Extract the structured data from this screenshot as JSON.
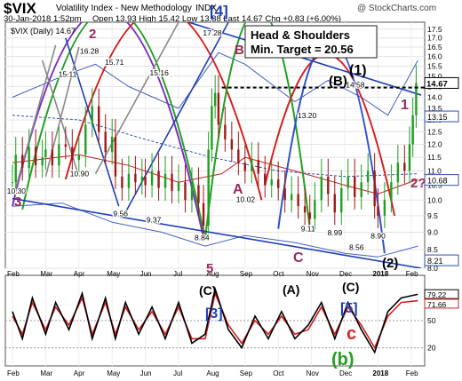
{
  "header": {
    "symbol": "$VIX",
    "name": "Volatility Index - New Methodology",
    "exchange": "INDX",
    "date_time": "30-Jan-2018 1:52pm",
    "quote": "Open 13.93 High 15.42 Low 13.88 Last 14.67 Chg +0.83 (+6.00%)",
    "watermark": "@ StockCharts.com",
    "legend": "$VIX (Daily) 14.67"
  },
  "annotations": {
    "hs_title": "Head & Shoulders",
    "hs_target": "Min. Target = 20.56",
    "top_wave": "[4]",
    "wave_labels": {
      "p_1": "(1)",
      "p_B": "(B)",
      "p_1r": "1",
      "p_2q": "2?",
      "p_2": "(2)",
      "p_3": "3",
      "p_2L": "2",
      "p_B2": "B",
      "p_A": "A",
      "p_C": "C",
      "p_5": "5",
      "i_C1": "(C)",
      "i_A": "(A)",
      "i_C2": "(C)",
      "i_3": "[3]",
      "i_5": "[5]",
      "i_c": "c",
      "i_b": "(b)"
    }
  },
  "chart_data": {
    "type": "candlestick",
    "x_ticks": [
      "Feb",
      "Mar",
      "Apr",
      "May",
      "Jun",
      "Jul",
      "Aug",
      "Sep",
      "Oct",
      "Nov",
      "Dec",
      "2018",
      "Feb"
    ],
    "y_ticks": [
      "8.0",
      "8.5",
      "9.0",
      "9.5",
      "10.0",
      "10.5",
      "11.0",
      "11.5",
      "12.0",
      "12.5",
      "13.0",
      "13.5",
      "14.0",
      "14.5",
      "15.0",
      "15.5",
      "16.0",
      "16.5",
      "17.0",
      "17.5"
    ],
    "y_log_scale": true,
    "ylim": [
      8.0,
      17.9
    ],
    "price_labels": [
      {
        "text": "10.30",
        "value": 10.3,
        "month": 0.1
      },
      {
        "text": "15.11",
        "value": 15.11,
        "month": 1.65
      },
      {
        "text": "16.28",
        "value": 16.28,
        "month": 2.3
      },
      {
        "text": "10.90",
        "value": 10.9,
        "month": 2.0
      },
      {
        "text": "15.71",
        "value": 15.71,
        "month": 3.05
      },
      {
        "text": "9.56",
        "value": 9.56,
        "month": 3.3
      },
      {
        "text": "15.16",
        "value": 15.16,
        "month": 4.4
      },
      {
        "text": "9.37",
        "value": 9.37,
        "month": 4.3
      },
      {
        "text": "17.28",
        "value": 17.28,
        "month": 6.0
      },
      {
        "text": "8.84",
        "value": 8.84,
        "month": 5.75
      },
      {
        "text": "10.02",
        "value": 10.02,
        "month": 7.0
      },
      {
        "text": "13.20",
        "value": 13.2,
        "month": 8.85
      },
      {
        "text": "9.11",
        "value": 9.11,
        "month": 8.95
      },
      {
        "text": "8.99",
        "value": 8.99,
        "month": 9.75
      },
      {
        "text": "14.58",
        "value": 14.58,
        "month": 10.3
      },
      {
        "text": "8.56",
        "value": 8.56,
        "month": 10.4
      },
      {
        "text": "8.90",
        "value": 8.9,
        "month": 11.05
      }
    ],
    "last_value": {
      "text": "14.67",
      "value": 14.67
    },
    "right_labels": [
      {
        "text": "13.15",
        "value": 13.15
      },
      {
        "text": "10.68",
        "value": 10.68
      },
      {
        "text": "8.21",
        "value": 8.21
      }
    ],
    "neckline": 14.45,
    "close_series": [
      [
        0.0,
        10.6
      ],
      [
        0.1,
        11.6
      ],
      [
        0.3,
        11.1
      ],
      [
        0.5,
        11.9
      ],
      [
        0.7,
        11.2
      ],
      [
        0.9,
        11.5
      ],
      [
        1.0,
        11.8
      ],
      [
        1.2,
        11.2
      ],
      [
        1.4,
        12.0
      ],
      [
        1.6,
        11.9
      ],
      [
        1.8,
        11.4
      ],
      [
        2.0,
        11.6
      ],
      [
        2.2,
        12.8
      ],
      [
        2.4,
        13.6
      ],
      [
        2.6,
        12.5
      ],
      [
        2.8,
        11.7
      ],
      [
        3.0,
        12.3
      ],
      [
        3.1,
        10.8
      ],
      [
        3.3,
        10.4
      ],
      [
        3.5,
        10.9
      ],
      [
        3.7,
        10.6
      ],
      [
        3.9,
        10.8
      ],
      [
        4.0,
        10.5
      ],
      [
        4.2,
        11.0
      ],
      [
        4.4,
        10.4
      ],
      [
        4.6,
        10.9
      ],
      [
        4.8,
        10.3
      ],
      [
        5.0,
        10.6
      ],
      [
        5.2,
        10.0
      ],
      [
        5.4,
        10.5
      ],
      [
        5.6,
        9.9
      ],
      [
        5.75,
        9.2
      ],
      [
        5.9,
        11.8
      ],
      [
        6.0,
        13.6
      ],
      [
        6.1,
        14.2
      ],
      [
        6.2,
        12.8
      ],
      [
        6.4,
        12.2
      ],
      [
        6.6,
        11.8
      ],
      [
        6.8,
        11.3
      ],
      [
        7.0,
        11.0
      ],
      [
        7.2,
        11.4
      ],
      [
        7.4,
        10.9
      ],
      [
        7.6,
        10.5
      ],
      [
        7.8,
        10.7
      ],
      [
        8.0,
        10.4
      ],
      [
        8.2,
        10.0
      ],
      [
        8.4,
        10.2
      ],
      [
        8.6,
        9.8
      ],
      [
        8.8,
        9.6
      ],
      [
        8.95,
        9.4
      ],
      [
        9.1,
        10.0
      ],
      [
        9.3,
        10.8
      ],
      [
        9.5,
        10.2
      ],
      [
        9.7,
        9.6
      ],
      [
        9.9,
        10.4
      ],
      [
        10.1,
        10.8
      ],
      [
        10.3,
        10.1
      ],
      [
        10.5,
        10.6
      ],
      [
        10.7,
        11.0
      ],
      [
        10.9,
        9.8
      ],
      [
        11.0,
        9.5
      ],
      [
        11.2,
        10.0
      ],
      [
        11.4,
        10.6
      ],
      [
        11.6,
        11.3
      ],
      [
        11.8,
        11.0
      ],
      [
        11.95,
        12.0
      ],
      [
        12.05,
        13.2
      ],
      [
        12.15,
        14.67
      ]
    ],
    "ma_red": [
      [
        0,
        11.3
      ],
      [
        2,
        11.6
      ],
      [
        3.5,
        11.2
      ],
      [
        5,
        10.6
      ],
      [
        6.3,
        10.9
      ],
      [
        7,
        11.5
      ],
      [
        8.5,
        11.0
      ],
      [
        10,
        10.5
      ],
      [
        11,
        10.2
      ],
      [
        12.2,
        10.7
      ]
    ],
    "ma_blue_dashed": [
      [
        0,
        13.2
      ],
      [
        2,
        13.0
      ],
      [
        4,
        12.2
      ],
      [
        6,
        11.5
      ],
      [
        8,
        11.0
      ],
      [
        10,
        10.8
      ],
      [
        12.2,
        10.9
      ]
    ],
    "bb_upper": [
      [
        0,
        14.0
      ],
      [
        1.5,
        15.0
      ],
      [
        2.5,
        15.6
      ],
      [
        3.5,
        14.5
      ],
      [
        5,
        13.5
      ],
      [
        6.2,
        16.2
      ],
      [
        7,
        15.6
      ],
      [
        8.5,
        13.8
      ],
      [
        9.5,
        14.8
      ],
      [
        10.5,
        14.0
      ],
      [
        11.3,
        13.2
      ],
      [
        12.2,
        15.8
      ]
    ],
    "bb_lower": [
      [
        0,
        9.8
      ],
      [
        1.5,
        9.9
      ],
      [
        3,
        9.3
      ],
      [
        4.5,
        9.0
      ],
      [
        5.8,
        8.6
      ],
      [
        7,
        8.9
      ],
      [
        8.5,
        8.7
      ],
      [
        10,
        8.4
      ],
      [
        11,
        8.3
      ],
      [
        12.2,
        8.6
      ]
    ],
    "indicator": {
      "y_ticks": [
        "50",
        "20"
      ],
      "right_labels": [
        "79.22",
        "71.66"
      ],
      "black": [
        [
          0,
          60
        ],
        [
          0.3,
          30
        ],
        [
          0.6,
          75
        ],
        [
          1.0,
          35
        ],
        [
          1.3,
          70
        ],
        [
          1.7,
          40
        ],
        [
          2.1,
          80
        ],
        [
          2.4,
          30
        ],
        [
          2.8,
          75
        ],
        [
          3.1,
          30
        ],
        [
          3.4,
          70
        ],
        [
          3.8,
          35
        ],
        [
          4.2,
          65
        ],
        [
          4.6,
          30
        ],
        [
          5.0,
          70
        ],
        [
          5.4,
          25
        ],
        [
          5.8,
          35
        ],
        [
          6.1,
          85
        ],
        [
          6.5,
          40
        ],
        [
          6.9,
          20
        ],
        [
          7.3,
          55
        ],
        [
          7.7,
          30
        ],
        [
          8.1,
          60
        ],
        [
          8.5,
          30
        ],
        [
          8.9,
          45
        ],
        [
          9.3,
          70
        ],
        [
          9.7,
          30
        ],
        [
          10.1,
          70
        ],
        [
          10.5,
          40
        ],
        [
          10.9,
          15
        ],
        [
          11.3,
          60
        ],
        [
          11.7,
          75
        ],
        [
          12.2,
          79
        ]
      ],
      "red": [
        [
          0,
          55
        ],
        [
          0.3,
          35
        ],
        [
          0.6,
          70
        ],
        [
          1.0,
          40
        ],
        [
          1.3,
          65
        ],
        [
          1.7,
          45
        ],
        [
          2.1,
          75
        ],
        [
          2.4,
          35
        ],
        [
          2.8,
          70
        ],
        [
          3.1,
          35
        ],
        [
          3.4,
          65
        ],
        [
          3.8,
          40
        ],
        [
          4.2,
          60
        ],
        [
          4.6,
          35
        ],
        [
          5.0,
          65
        ],
        [
          5.4,
          30
        ],
        [
          5.8,
          30
        ],
        [
          6.1,
          80
        ],
        [
          6.5,
          45
        ],
        [
          6.9,
          25
        ],
        [
          7.3,
          50
        ],
        [
          7.7,
          35
        ],
        [
          8.1,
          55
        ],
        [
          8.5,
          35
        ],
        [
          8.9,
          40
        ],
        [
          9.3,
          65
        ],
        [
          9.7,
          35
        ],
        [
          10.1,
          65
        ],
        [
          10.5,
          45
        ],
        [
          10.9,
          20
        ],
        [
          11.3,
          55
        ],
        [
          11.7,
          70
        ],
        [
          12.2,
          72
        ]
      ]
    },
    "cycle_arcs": [
      {
        "color": "#7b2fbf",
        "from": [
          0.0,
          9.8
        ],
        "to": [
          5.75,
          8.84
        ],
        "peak": 17.8
      },
      {
        "color": "#d62020",
        "from": [
          1.6,
          10.7
        ],
        "to": [
          7.5,
          10.0
        ],
        "peak": 17.9
      },
      {
        "color": "#20a020",
        "from": [
          0.3,
          9.7
        ],
        "to": [
          5.8,
          8.8
        ],
        "peak": 17.9
      },
      {
        "color": "#20a020",
        "from": [
          5.8,
          8.8
        ],
        "to": [
          8.95,
          9.11
        ],
        "peak": 17.9
      },
      {
        "color": "#d62020",
        "from": [
          7.6,
          10.5
        ],
        "to": [
          11.5,
          9.5
        ],
        "peak": 15.4
      },
      {
        "color": "#3050d0",
        "from": [
          8.0,
          9.1
        ],
        "to": [
          11.2,
          8.4
        ],
        "peak": 16.2
      }
    ],
    "trend_lines": [
      {
        "color": "#1f3fb4",
        "points": [
          [
            0.0,
            10.05
          ],
          [
            12.3,
            8.0
          ]
        ]
      },
      {
        "color": "#1f3fb4",
        "points": [
          [
            1.6,
            17.0
          ],
          [
            3.2,
            9.8
          ]
        ]
      },
      {
        "color": "#1f3fb4",
        "points": [
          [
            5.3,
            17.9
          ],
          [
            12.3,
            14.1
          ]
        ]
      },
      {
        "color": "#1f3fb4",
        "points": [
          [
            3.4,
            9.6
          ],
          [
            6.5,
            17.9
          ]
        ]
      },
      {
        "color": "#888888",
        "points": [
          [
            0.1,
            10.4
          ],
          [
            1.3,
            16.6
          ]
        ]
      },
      {
        "color": "#888888",
        "points": [
          [
            1.0,
            10.8
          ],
          [
            2.0,
            16.5
          ]
        ]
      },
      {
        "color": "#888888",
        "points": [
          [
            2.5,
            10.9
          ],
          [
            5.0,
            17.9
          ]
        ]
      },
      {
        "color": "#888888",
        "points": [
          [
            0.9,
            15.8
          ],
          [
            2.0,
            10.8
          ]
        ]
      }
    ]
  }
}
